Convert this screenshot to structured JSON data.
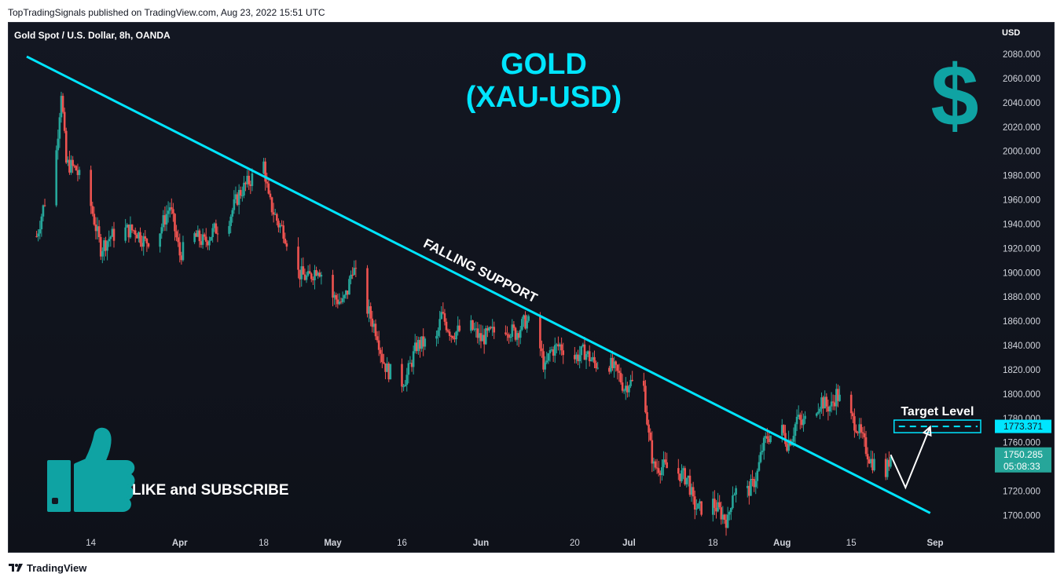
{
  "header": {
    "published": "TopTradingSignals published on TradingView.com, Aug 23, 2022 15:51 UTC"
  },
  "footer": {
    "brand": "TradingView"
  },
  "colors": {
    "bg": "#131722",
    "up": "#26a69a",
    "down": "#ef5350",
    "accent": "#00e5ff",
    "teal": "#0fa3a3"
  },
  "chart_data": {
    "type": "candlestick",
    "symbol_label": "Gold Spot / U.S. Dollar, 8h, OANDA",
    "currency": "USD",
    "ylim": [
      1685,
      2102
    ],
    "y_ticks": [
      "2080.000",
      "2060.000",
      "2040.000",
      "2020.000",
      "2000.000",
      "1980.000",
      "1960.000",
      "1940.000",
      "1920.000",
      "1900.000",
      "1880.000",
      "1860.000",
      "1840.000",
      "1820.000",
      "1800.000",
      "1780.000",
      "1760.000",
      "1740.000",
      "1720.000",
      "1700.000"
    ],
    "x_ticks": [
      {
        "label": "14",
        "date": "2022-03-14",
        "month": false
      },
      {
        "label": "Apr",
        "date": "2022-04-01",
        "month": true
      },
      {
        "label": "18",
        "date": "2022-04-18",
        "month": false
      },
      {
        "label": "May",
        "date": "2022-05-02",
        "month": true
      },
      {
        "label": "16",
        "date": "2022-05-16",
        "month": false
      },
      {
        "label": "Jun",
        "date": "2022-06-01",
        "month": true
      },
      {
        "label": "20",
        "date": "2022-06-20",
        "month": false
      },
      {
        "label": "Jul",
        "date": "2022-07-01",
        "month": true
      },
      {
        "label": "18",
        "date": "2022-07-18",
        "month": false
      },
      {
        "label": "Aug",
        "date": "2022-08-01",
        "month": true
      },
      {
        "label": "15",
        "date": "2022-08-15",
        "month": false
      },
      {
        "label": "Sep",
        "date": "2022-09-01",
        "month": true
      }
    ],
    "price_path": [
      [
        "2022-03-03",
        1930
      ],
      [
        "2022-03-05",
        1965
      ],
      [
        "2022-03-07",
        2000
      ],
      [
        "2022-03-08",
        2050
      ],
      [
        "2022-03-09",
        1990
      ],
      [
        "2022-03-11",
        1985
      ],
      [
        "2022-03-14",
        1955
      ],
      [
        "2022-03-16",
        1920
      ],
      [
        "2022-03-18",
        1930
      ],
      [
        "2022-03-21",
        1935
      ],
      [
        "2022-03-23",
        1935
      ],
      [
        "2022-03-25",
        1925
      ],
      [
        "2022-03-28",
        1935
      ],
      [
        "2022-03-30",
        1955
      ],
      [
        "2022-03-31",
        1935
      ],
      [
        "2022-04-01",
        1915
      ],
      [
        "2022-04-04",
        1930
      ],
      [
        "2022-04-06",
        1925
      ],
      [
        "2022-04-08",
        1935
      ],
      [
        "2022-04-11",
        1945
      ],
      [
        "2022-04-13",
        1965
      ],
      [
        "2022-04-15",
        1975
      ],
      [
        "2022-04-18",
        1990
      ],
      [
        "2022-04-19",
        1960
      ],
      [
        "2022-04-21",
        1940
      ],
      [
        "2022-04-22",
        1935
      ],
      [
        "2022-04-25",
        1900
      ],
      [
        "2022-04-27",
        1895
      ],
      [
        "2022-04-29",
        1905
      ],
      [
        "2022-05-02",
        1880
      ],
      [
        "2022-05-04",
        1875
      ],
      [
        "2022-05-05",
        1885
      ],
      [
        "2022-05-06",
        1905
      ],
      [
        "2022-05-09",
        1870
      ],
      [
        "2022-05-11",
        1850
      ],
      [
        "2022-05-12",
        1830
      ],
      [
        "2022-05-13",
        1820
      ],
      [
        "2022-05-16",
        1810
      ],
      [
        "2022-05-17",
        1815
      ],
      [
        "2022-05-19",
        1840
      ],
      [
        "2022-05-23",
        1845
      ],
      [
        "2022-05-24",
        1865
      ],
      [
        "2022-05-26",
        1850
      ],
      [
        "2022-05-30",
        1855
      ],
      [
        "2022-06-01",
        1845
      ],
      [
        "2022-06-03",
        1850
      ],
      [
        "2022-06-06",
        1855
      ],
      [
        "2022-06-08",
        1850
      ],
      [
        "2022-06-10",
        1860
      ],
      [
        "2022-06-12",
        1855
      ],
      [
        "2022-06-14",
        1820
      ],
      [
        "2022-06-15",
        1835
      ],
      [
        "2022-06-17",
        1840
      ],
      [
        "2022-06-20",
        1830
      ],
      [
        "2022-06-22",
        1835
      ],
      [
        "2022-06-24",
        1825
      ],
      [
        "2022-06-27",
        1825
      ],
      [
        "2022-06-29",
        1815
      ],
      [
        "2022-06-30",
        1805
      ],
      [
        "2022-07-01",
        1810
      ],
      [
        "2022-07-04",
        1805
      ],
      [
        "2022-07-05",
        1765
      ],
      [
        "2022-07-06",
        1740
      ],
      [
        "2022-07-08",
        1740
      ],
      [
        "2022-07-11",
        1735
      ],
      [
        "2022-07-13",
        1730
      ],
      [
        "2022-07-14",
        1710
      ],
      [
        "2022-07-15",
        1705
      ],
      [
        "2022-07-18",
        1710
      ],
      [
        "2022-07-19",
        1705
      ],
      [
        "2022-07-20",
        1700
      ],
      [
        "2022-07-21",
        1695
      ],
      [
        "2022-07-22",
        1720
      ],
      [
        "2022-07-25",
        1720
      ],
      [
        "2022-07-26",
        1725
      ],
      [
        "2022-07-27",
        1735
      ],
      [
        "2022-07-28",
        1755
      ],
      [
        "2022-07-29",
        1765
      ],
      [
        "2022-08-01",
        1770
      ],
      [
        "2022-08-02",
        1760
      ],
      [
        "2022-08-03",
        1765
      ],
      [
        "2022-08-04",
        1780
      ],
      [
        "2022-08-05",
        1775
      ],
      [
        "2022-08-08",
        1790
      ],
      [
        "2022-08-09",
        1795
      ],
      [
        "2022-08-10",
        1790
      ],
      [
        "2022-08-11",
        1790
      ],
      [
        "2022-08-12",
        1800
      ],
      [
        "2022-08-15",
        1780
      ],
      [
        "2022-08-16",
        1775
      ],
      [
        "2022-08-17",
        1765
      ],
      [
        "2022-08-18",
        1755
      ],
      [
        "2022-08-19",
        1745
      ],
      [
        "2022-08-22",
        1735
      ],
      [
        "2022-08-23",
        1750
      ]
    ],
    "falling_support": {
      "start": [
        "2022-03-01",
        2078
      ],
      "end": [
        "2022-08-31",
        1702
      ]
    },
    "target_level": {
      "label": "Target Level",
      "price": 1773.371,
      "price_label": "1773.371"
    },
    "projection": [
      [
        "2022-08-23",
        1750
      ],
      [
        "2022-08-26",
        1723
      ],
      [
        "2022-08-31",
        1773
      ]
    ],
    "last_price": {
      "price": 1750.285,
      "price_label": "1750.285",
      "countdown": "05:08:33"
    }
  },
  "annotations": {
    "title_line1": "GOLD",
    "title_line2": "(XAU-USD)",
    "trendline_label": "FALLING SUPPORT",
    "cta_text": "LIKE and SUBSCRIBE",
    "dollar_icon": "dollar-sign-icon",
    "thumb_icon": "thumbs-up-icon"
  }
}
